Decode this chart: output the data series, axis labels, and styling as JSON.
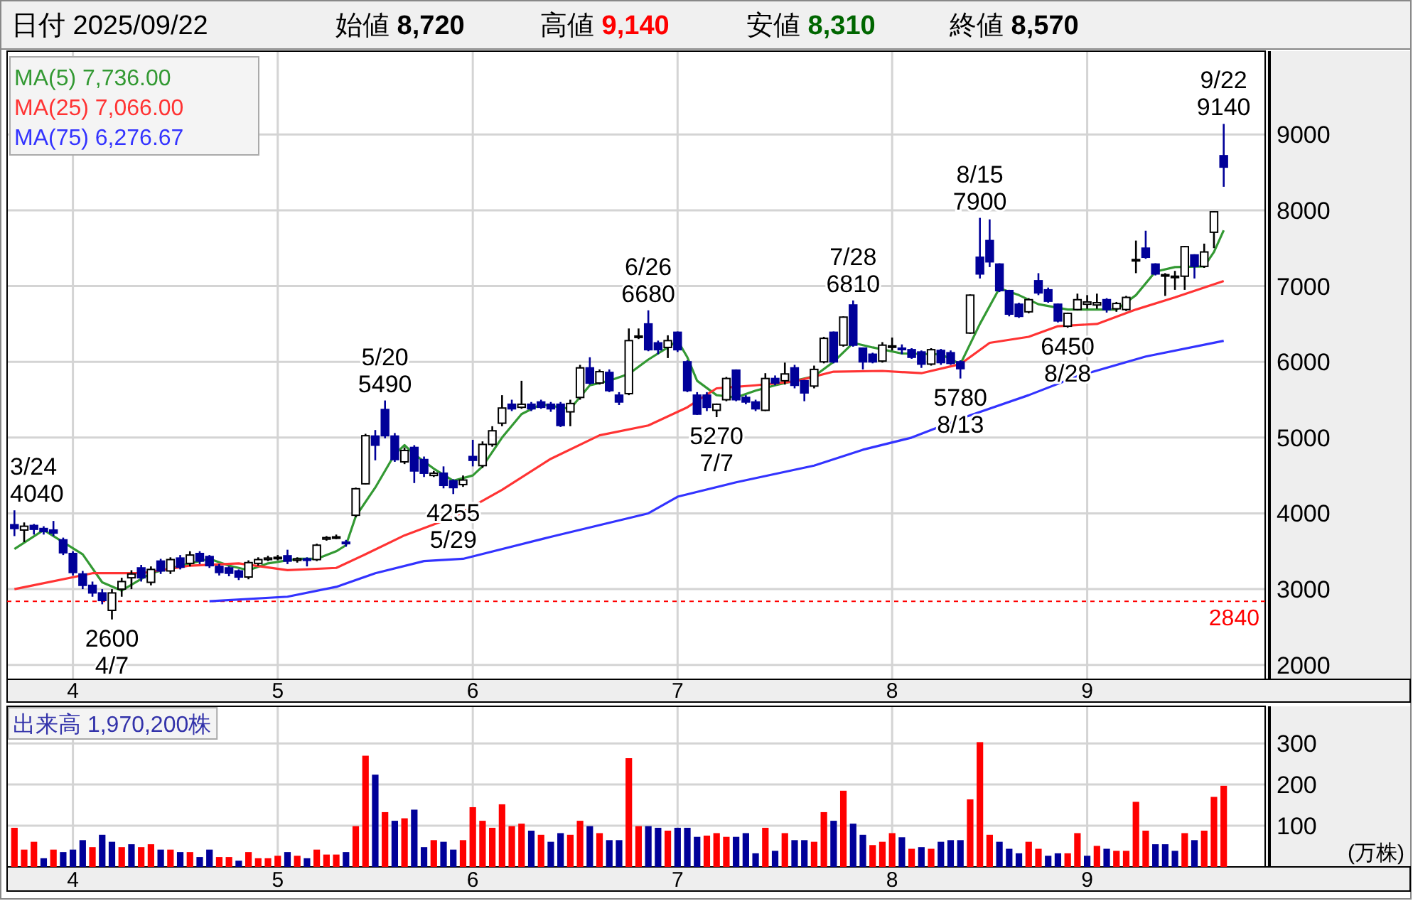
{
  "chart_data": [
    {
      "type": "candlestick",
      "title": "日付 2025/09/22",
      "annotations": [
        "始値 **8,720**",
        "高値 **9,140**",
        "安値 **8,310**",
        "終値 **8,570**",
        "3/24\n4040",
        {
          "text": "2600\n4/7",
          "y": 2600
        },
        {
          "text": "5/20\n5490",
          "y": 5490
        },
        {
          "text": "4255\n5/29",
          "y": 4255
        },
        {
          "text": "6/26\n6680",
          "y": 6680
        },
        {
          "text": "5270\n7/7",
          "y": 5270
        },
        {
          "text": "7/28\n6810",
          "y": 6810
        },
        {
          "text": "5780\n8/13",
          "y": 5780
        },
        {
          "text": "8/15\n7900",
          "y": 7900
        },
        {
          "text": "6450\n8/28",
          "y": 6450
        },
        {
          "text": "9/22\n9140",
          "y": 9140
        }
      ],
      "categories": [
        null,
        null,
        null,
        null,
        null,
        null,
        "4",
        null,
        null,
        null,
        null,
        null,
        null,
        null,
        null,
        null,
        null,
        null,
        null,
        null,
        null,
        null,
        null,
        null,
        null,
        null,
        null,
        "5",
        null,
        null,
        null,
        null,
        null,
        null,
        null,
        null,
        null,
        null,
        null,
        null,
        null,
        null,
        null,
        null,
        null,
        null,
        null,
        "6",
        null,
        null,
        null,
        null,
        null,
        null,
        null,
        null,
        null,
        null,
        null,
        null,
        null,
        null,
        null,
        null,
        null,
        null,
        null,
        null,
        "7",
        null,
        null,
        null,
        null,
        null,
        null,
        null,
        null,
        null,
        null,
        null,
        null,
        null,
        null,
        null,
        null,
        null,
        null,
        null,
        null,
        null,
        "8",
        null,
        null,
        null,
        null,
        null,
        null,
        null,
        null,
        null,
        null,
        null,
        null,
        null,
        null,
        null,
        null,
        null,
        null,
        null,
        "9",
        null,
        null,
        null,
        null,
        null,
        null,
        null,
        null,
        null,
        null,
        null,
        null,
        null,
        null
      ],
      "ohlc": [
        [
          3850,
          4040,
          3700,
          3800
        ],
        [
          3780,
          3880,
          3620,
          3830
        ],
        [
          3840,
          3860,
          3720,
          3790
        ],
        [
          3800,
          3830,
          3720,
          3760
        ],
        [
          3780,
          3900,
          3700,
          3740
        ],
        [
          3650,
          3680,
          3450,
          3480
        ],
        [
          3470,
          3500,
          3180,
          3220
        ],
        [
          3200,
          3240,
          3000,
          3050
        ],
        [
          3050,
          3100,
          2900,
          2950
        ],
        [
          2950,
          3000,
          2800,
          2850
        ],
        [
          2720,
          3000,
          2600,
          2950
        ],
        [
          3000,
          3150,
          2900,
          3100
        ],
        [
          3150,
          3250,
          3000,
          3200
        ],
        [
          3280,
          3320,
          3100,
          3150
        ],
        [
          3090,
          3300,
          3050,
          3260
        ],
        [
          3370,
          3400,
          3200,
          3240
        ],
        [
          3240,
          3420,
          3200,
          3390
        ],
        [
          3410,
          3450,
          3260,
          3290
        ],
        [
          3340,
          3500,
          3300,
          3450
        ],
        [
          3470,
          3500,
          3330,
          3370
        ],
        [
          3430,
          3450,
          3280,
          3310
        ],
        [
          3300,
          3330,
          3180,
          3220
        ],
        [
          3280,
          3300,
          3170,
          3210
        ],
        [
          3240,
          3260,
          3120,
          3160
        ],
        [
          3160,
          3380,
          3130,
          3350
        ],
        [
          3340,
          3420,
          3310,
          3390
        ],
        [
          3390,
          3440,
          3370,
          3410
        ],
        [
          3410,
          3450,
          3380,
          3420
        ],
        [
          3440,
          3520,
          3330,
          3370
        ],
        [
          3380,
          3420,
          3350,
          3400
        ],
        [
          3400,
          3420,
          3300,
          3380
        ],
        [
          3390,
          3600,
          3370,
          3580
        ],
        [
          3660,
          3700,
          3640,
          3680
        ],
        [
          3680,
          3720,
          3660,
          3690
        ],
        [
          3620,
          3650,
          3560,
          3600
        ],
        [
          3975,
          4340,
          3950,
          4325
        ],
        [
          4390,
          5050,
          4380,
          5025
        ],
        [
          5020,
          5100,
          4700,
          4900
        ],
        [
          5370,
          5490,
          4990,
          5025
        ],
        [
          5020,
          5060,
          4680,
          4710
        ],
        [
          4680,
          4870,
          4650,
          4830
        ],
        [
          4870,
          4900,
          4400,
          4560
        ],
        [
          4710,
          4750,
          4480,
          4530
        ],
        [
          4500,
          4560,
          4480,
          4530
        ],
        [
          4530,
          4620,
          4330,
          4370
        ],
        [
          4430,
          4450,
          4255,
          4340
        ],
        [
          4380,
          4500,
          4350,
          4440
        ],
        [
          4750,
          4970,
          4620,
          4700
        ],
        [
          4630,
          4950,
          4600,
          4910
        ],
        [
          4910,
          5150,
          4880,
          5090
        ],
        [
          5190,
          5560,
          5150,
          5390
        ],
        [
          5440,
          5500,
          5350,
          5380
        ],
        [
          5400,
          5750,
          5380,
          5440
        ],
        [
          5440,
          5470,
          5350,
          5380
        ],
        [
          5470,
          5500,
          5380,
          5400
        ],
        [
          5440,
          5470,
          5340,
          5380
        ],
        [
          5440,
          5470,
          5140,
          5160
        ],
        [
          5340,
          5500,
          5150,
          5450
        ],
        [
          5530,
          5960,
          5500,
          5920
        ],
        [
          5920,
          6060,
          5700,
          5720
        ],
        [
          5720,
          5900,
          5700,
          5870
        ],
        [
          5860,
          5900,
          5600,
          5620
        ],
        [
          5560,
          5600,
          5430,
          5470
        ],
        [
          5580,
          6440,
          5560,
          6280
        ],
        [
          6330,
          6440,
          6300,
          6340
        ],
        [
          6500,
          6680,
          6140,
          6160
        ],
        [
          6250,
          6280,
          6100,
          6160
        ],
        [
          6190,
          6350,
          6050,
          6280
        ],
        [
          6390,
          6400,
          6130,
          6160
        ],
        [
          6000,
          6020,
          5600,
          5620
        ],
        [
          5560,
          5600,
          5300,
          5310
        ],
        [
          5560,
          5600,
          5350,
          5400
        ],
        [
          5360,
          5450,
          5270,
          5440
        ],
        [
          5500,
          5800,
          5480,
          5780
        ],
        [
          5890,
          5900,
          5480,
          5500
        ],
        [
          5530,
          5560,
          5440,
          5470
        ],
        [
          5470,
          5500,
          5350,
          5380
        ],
        [
          5360,
          5850,
          5350,
          5780
        ],
        [
          5780,
          5820,
          5690,
          5720
        ],
        [
          5750,
          5990,
          5700,
          5840
        ],
        [
          5920,
          5960,
          5650,
          5690
        ],
        [
          5750,
          5760,
          5480,
          5590
        ],
        [
          5680,
          5950,
          5650,
          5900
        ],
        [
          6000,
          6330,
          5980,
          6310
        ],
        [
          6390,
          6400,
          5980,
          6000
        ],
        [
          6220,
          6600,
          6200,
          6590
        ],
        [
          6750,
          6810,
          6200,
          6220
        ],
        [
          6180,
          6190,
          5900,
          6000
        ],
        [
          6100,
          6120,
          5980,
          6000
        ],
        [
          6010,
          6260,
          5990,
          6220
        ],
        [
          6200,
          6320,
          6150,
          6210
        ],
        [
          6180,
          6230,
          6100,
          6170
        ],
        [
          6160,
          6180,
          6040,
          6060
        ],
        [
          6130,
          6150,
          5920,
          5970
        ],
        [
          5970,
          6180,
          5950,
          6160
        ],
        [
          6150,
          6170,
          5960,
          5990
        ],
        [
          6120,
          6150,
          5960,
          5980
        ],
        [
          6000,
          6020,
          5780,
          5910
        ],
        [
          6380,
          6890,
          6370,
          6880
        ],
        [
          7380,
          7900,
          7100,
          7160
        ],
        [
          7600,
          7880,
          7250,
          7320
        ],
        [
          7290,
          7300,
          6920,
          6940
        ],
        [
          6940,
          6950,
          6600,
          6630
        ],
        [
          6760,
          6780,
          6580,
          6600
        ],
        [
          6660,
          6840,
          6640,
          6820
        ],
        [
          7070,
          7170,
          6880,
          6910
        ],
        [
          6950,
          6980,
          6780,
          6800
        ],
        [
          6760,
          6770,
          6520,
          6540
        ],
        [
          6470,
          6650,
          6450,
          6640
        ],
        [
          6690,
          6900,
          6680,
          6820
        ],
        [
          6760,
          6880,
          6700,
          6790
        ],
        [
          6750,
          6900,
          6700,
          6780
        ],
        [
          6820,
          6840,
          6650,
          6690
        ],
        [
          6700,
          6790,
          6660,
          6770
        ],
        [
          6690,
          6870,
          6670,
          6850
        ],
        [
          7340,
          7600,
          7170,
          7350
        ],
        [
          7500,
          7730,
          7360,
          7380
        ],
        [
          7290,
          7300,
          7140,
          7160
        ],
        [
          7140,
          7170,
          6870,
          7150
        ],
        [
          7120,
          7200,
          6950,
          7130
        ],
        [
          7130,
          7530,
          6950,
          7520
        ],
        [
          7410,
          7420,
          7100,
          7260
        ],
        [
          7260,
          7560,
          7240,
          7450
        ],
        [
          7710,
          7990,
          7500,
          7980
        ],
        [
          8720,
          9140,
          8310,
          8570
        ]
      ],
      "series": [
        {
          "type": "line",
          "name": "MA(5) 7,736.00",
          "color": "#339933",
          "values": [
            3530,
            null,
            null,
            3780,
            null,
            null,
            null,
            3460,
            null,
            3090,
            null,
            2980,
            null,
            null,
            3210,
            null,
            null,
            null,
            3340,
            null,
            3400,
            null,
            3310,
            null,
            3250,
            null,
            3340,
            null,
            null,
            3400,
            null,
            3400,
            null,
            3500,
            3580,
            3960,
            null,
            4340,
            null,
            4780,
            4900,
            4780,
            null,
            4590,
            null,
            4430,
            null,
            4500,
            4620,
            null,
            5000,
            null,
            5310,
            null,
            5440,
            null,
            null,
            5380,
            null,
            5690,
            null,
            5750,
            null,
            5840,
            null,
            6030,
            null,
            6190,
            6280,
            6060,
            5750,
            null,
            5560,
            null,
            5530,
            null,
            5620,
            null,
            5690,
            null,
            5750,
            null,
            5810,
            null,
            6000,
            null,
            6250,
            null,
            6190,
            null,
            null,
            6110,
            null,
            null,
            null,
            6100,
            null,
            5970,
            null,
            6500,
            null,
            6970,
            null,
            6880,
            null,
            6760,
            null,
            null,
            6690,
            null,
            6690,
            null,
            null,
            6690,
            null,
            6880,
            null,
            7190,
            null,
            7250,
            null,
            null,
            7260,
            7450,
            7736
          ]
        },
        {
          "type": "line",
          "name": "MA(25) 7,066.00",
          "color": "#ff3333",
          "values": [
            3000,
            null,
            null,
            null,
            null,
            null,
            null,
            null,
            3210,
            null,
            null,
            null,
            null,
            3210,
            null,
            null,
            null,
            null,
            3310,
            null,
            null,
            null,
            null,
            3340,
            null,
            null,
            null,
            null,
            3250,
            null,
            null,
            null,
            null,
            3280,
            null,
            null,
            3460,
            null,
            null,
            null,
            3710,
            null,
            null,
            null,
            null,
            3950,
            null,
            null,
            null,
            null,
            4310,
            null,
            null,
            null,
            null,
            4720,
            null,
            null,
            null,
            null,
            5030,
            null,
            null,
            null,
            null,
            5160,
            null,
            null,
            null,
            5400,
            null,
            null,
            5650,
            null,
            null,
            null,
            5690,
            null,
            null,
            null,
            5740,
            null,
            null,
            null,
            5870,
            null,
            null,
            null,
            null,
            5880,
            null,
            null,
            null,
            5850,
            null,
            null,
            null,
            5970,
            null,
            null,
            6250,
            null,
            null,
            null,
            6330,
            null,
            null,
            6470,
            null,
            null,
            null,
            6500,
            null,
            null,
            null,
            6690,
            null,
            null,
            null,
            6850,
            null,
            null,
            null,
            null,
            7066
          ]
        },
        {
          "type": "line",
          "name": "MA(75) 6,276.67",
          "color": "#3333ff",
          "values": [
            null,
            null,
            null,
            null,
            null,
            null,
            null,
            null,
            null,
            null,
            null,
            null,
            null,
            null,
            null,
            null,
            null,
            null,
            null,
            null,
            2840,
            null,
            null,
            null,
            null,
            null,
            null,
            null,
            2900,
            null,
            null,
            null,
            null,
            3030,
            null,
            null,
            null,
            3210,
            null,
            null,
            null,
            null,
            3370,
            null,
            null,
            null,
            3400,
            null,
            null,
            null,
            null,
            null,
            null,
            null,
            null,
            3690,
            null,
            null,
            null,
            null,
            null,
            null,
            null,
            null,
            null,
            4000,
            null,
            null,
            4220,
            null,
            null,
            null,
            null,
            null,
            4410,
            null,
            null,
            null,
            null,
            null,
            null,
            null,
            4630,
            null,
            null,
            null,
            null,
            4840,
            null,
            null,
            null,
            null,
            5000,
            null,
            null,
            null,
            null,
            5250,
            null,
            null,
            null,
            null,
            null,
            null,
            5560,
            null,
            null,
            null,
            null,
            5810,
            null,
            null,
            null,
            null,
            null,
            null,
            6070,
            null,
            null,
            null,
            null,
            null,
            null,
            null,
            6277
          ]
        }
      ],
      "ylim": [
        1810,
        10100
      ],
      "yticks": [
        2000,
        3000,
        4000,
        5000,
        6000,
        7000,
        8000,
        9000
      ],
      "ref_lines": [
        {
          "axis": "y",
          "value": 2840,
          "label": "2840",
          "color": "#ff0000",
          "line_style": "dashed"
        }
      ],
      "grid": true,
      "legend": "top left"
    },
    {
      "type": "bar",
      "title": "出来高 1,970,200株",
      "ylabel": "(万株)",
      "categories": [
        null,
        null,
        null,
        null,
        null,
        null,
        "4",
        null,
        null,
        null,
        null,
        null,
        null,
        null,
        null,
        null,
        null,
        null,
        null,
        null,
        null,
        null,
        null,
        null,
        null,
        null,
        null,
        "5",
        null,
        null,
        null,
        null,
        null,
        null,
        null,
        null,
        null,
        null,
        null,
        null,
        null,
        null,
        null,
        null,
        null,
        null,
        null,
        "6",
        null,
        null,
        null,
        null,
        null,
        null,
        null,
        null,
        null,
        null,
        null,
        null,
        null,
        null,
        null,
        null,
        null,
        null,
        null,
        null,
        "7",
        null,
        null,
        null,
        null,
        null,
        null,
        null,
        null,
        null,
        null,
        null,
        null,
        null,
        null,
        null,
        null,
        null,
        null,
        null,
        null,
        null,
        "8",
        null,
        null,
        null,
        null,
        null,
        null,
        null,
        null,
        null,
        null,
        null,
        null,
        null,
        null,
        null,
        null,
        null,
        null,
        null,
        "9",
        null,
        null,
        null,
        null,
        null,
        null,
        null,
        null,
        null,
        null,
        null,
        null,
        null,
        null
      ],
      "values": [
        95,
        42,
        61,
        21,
        42,
        36,
        42,
        65,
        48,
        78,
        61,
        48,
        55,
        48,
        55,
        42,
        42,
        36,
        36,
        24,
        42,
        24,
        24,
        15,
        36,
        21,
        21,
        27,
        36,
        27,
        21,
        42,
        30,
        30,
        36,
        99,
        270,
        224,
        133,
        112,
        118,
        139,
        48,
        65,
        61,
        42,
        65,
        145,
        112,
        95,
        152,
        99,
        105,
        88,
        78,
        61,
        82,
        78,
        112,
        99,
        82,
        65,
        65,
        264,
        99,
        99,
        95,
        88,
        95,
        95,
        73,
        76,
        82,
        73,
        73,
        82,
        33,
        95,
        39,
        82,
        65,
        65,
        61,
        133,
        112,
        185,
        105,
        78,
        53,
        61,
        82,
        72,
        44,
        48,
        44,
        61,
        65,
        65,
        164,
        303,
        78,
        61,
        44,
        33,
        61,
        44,
        27,
        33,
        33,
        82,
        27,
        51,
        44,
        39,
        39,
        158,
        88,
        55,
        55,
        39,
        82,
        65,
        88,
        170,
        197
      ],
      "colors": [
        "#ff0000",
        "#ff0000",
        "#ff0000",
        "#000099",
        "#ff0000",
        "#000099",
        "#000099",
        "#000099",
        "#ff0000",
        "#000099",
        "#000099",
        "#ff0000",
        "#000099",
        "#ff0000",
        "#ff0000",
        "#000099",
        "#ff0000",
        "#000099",
        "#ff0000",
        "#000099",
        "#000099",
        "#ff0000",
        "#ff0000",
        "#000099",
        "#ff0000",
        "#ff0000",
        "#ff0000",
        "#ff0000",
        "#000099",
        "#ff0000",
        "#000099",
        "#ff0000",
        "#ff0000",
        "#ff0000",
        "#000099",
        "#ff0000",
        "#ff0000",
        "#000099",
        "#ff0000",
        "#000099",
        "#ff0000",
        "#000099",
        "#000099",
        "#ff0000",
        "#000099",
        "#000099",
        "#ff0000",
        "#ff0000",
        "#ff0000",
        "#ff0000",
        "#ff0000",
        "#ff0000",
        "#ff0000",
        "#000099",
        "#ff0000",
        "#000099",
        "#000099",
        "#ff0000",
        "#ff0000",
        "#000099",
        "#ff0000",
        "#000099",
        "#000099",
        "#ff0000",
        "#ff0000",
        "#000099",
        "#000099",
        "#ff0000",
        "#000099",
        "#000099",
        "#000099",
        "#ff0000",
        "#ff0000",
        "#ff0000",
        "#000099",
        "#000099",
        "#000099",
        "#ff0000",
        "#000099",
        "#ff0000",
        "#000099",
        "#000099",
        "#ff0000",
        "#ff0000",
        "#000099",
        "#ff0000",
        "#000099",
        "#000099",
        "#ff0000",
        "#ff0000",
        "#ff0000",
        "#000099",
        "#ff0000",
        "#000099",
        "#ff0000",
        "#000099",
        "#000099",
        "#000099",
        "#ff0000",
        "#ff0000",
        "#ff0000",
        "#000099",
        "#000099",
        "#000099",
        "#ff0000",
        "#ff0000",
        "#000099",
        "#000099",
        "#ff0000",
        "#ff0000",
        "#000099",
        "#ff0000",
        "#000099",
        "#ff0000",
        "#ff0000",
        "#ff0000",
        "#ff0000",
        "#000099",
        "#000099",
        "#000099",
        "#ff0000",
        "#000099",
        "#ff0000",
        "#ff0000",
        "#ff0000"
      ],
      "ylim": [
        0,
        390
      ],
      "yticks": [
        100,
        200,
        300
      ],
      "grid": true
    }
  ]
}
